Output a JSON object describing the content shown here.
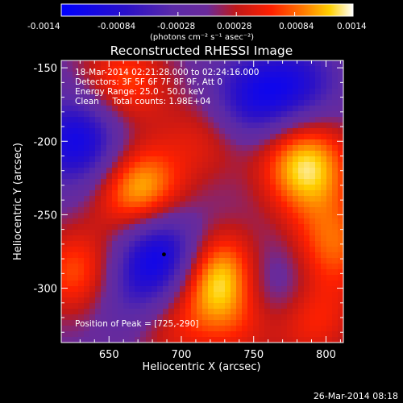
{
  "colorbar": {
    "ticks": [
      "-0.0014",
      "-0.00084",
      "-0.00028",
      "0.00028",
      "0.00084",
      "0.0014"
    ],
    "units_label": "(photons cm⁻² s⁻¹ asec⁻²)",
    "min": -0.0014,
    "max": 0.0014
  },
  "chart_data": {
    "type": "heatmap",
    "title": "Reconstructed RHESSI Image",
    "xlabel": "Heliocentric X (arcsec)",
    "ylabel": "Heliocentric Y (arcsec)",
    "xlim": [
      617,
      812
    ],
    "ylim": [
      -337,
      -145
    ],
    "xticks": [
      650,
      700,
      750,
      800
    ],
    "yticks": [
      -150,
      -200,
      -250,
      -300
    ],
    "grid": false,
    "annotations": [
      "18-Mar-2014 02:21:28.000 to 02:24:16.000",
      "Detectors: 3F 5F 6F 7F 8F 9F, Att 0",
      "Energy Range: 25.0 - 50.0 keV",
      "Clean     Total counts: 1.98E+04"
    ],
    "peak_label": "Position of Peak = [725,-290]",
    "peak": [
      725,
      -290
    ],
    "min_marker": [
      688,
      -277
    ],
    "blobs": [
      {
        "x": 725,
        "y": -290,
        "amp": 0.0014
      },
      {
        "x": 671,
        "y": -233,
        "amp": 0.00125
      },
      {
        "x": 787,
        "y": -221,
        "amp": 0.0011
      },
      {
        "x": 688,
        "y": -277,
        "amp": -0.0013
      },
      {
        "x": 630,
        "y": -200,
        "amp": -0.00115
      },
      {
        "x": 745,
        "y": -175,
        "amp": -0.0009
      },
      {
        "x": 778,
        "y": -165,
        "amp": -0.00095
      },
      {
        "x": 660,
        "y": -160,
        "amp": 0.0008
      },
      {
        "x": 630,
        "y": -290,
        "amp": 0.0009
      },
      {
        "x": 790,
        "y": -320,
        "amp": 0.0007
      },
      {
        "x": 805,
        "y": -270,
        "amp": 0.00085
      },
      {
        "x": 760,
        "y": -300,
        "amp": -0.0007
      },
      {
        "x": 740,
        "y": -320,
        "amp": 0.0006
      },
      {
        "x": 690,
        "y": -325,
        "amp": 0.00055
      },
      {
        "x": 720,
        "y": -195,
        "amp": 0.0006
      },
      {
        "x": 780,
        "y": -195,
        "amp": 0.0005
      },
      {
        "x": 665,
        "y": -305,
        "amp": -0.0006
      }
    ]
  },
  "timestamp": "26-Mar-2014 08:18"
}
